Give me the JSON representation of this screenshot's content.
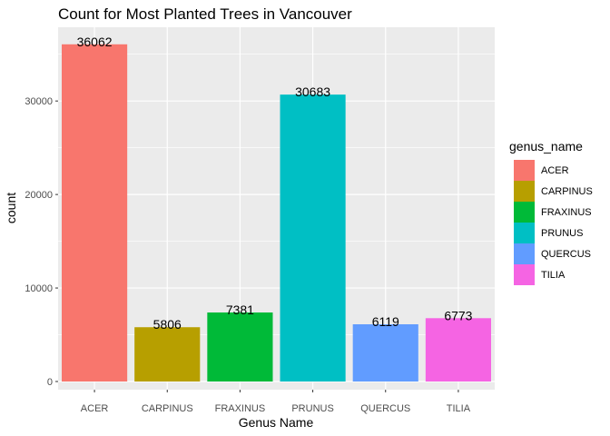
{
  "chart_data": {
    "type": "bar",
    "title": "Count for Most Planted Trees in Vancouver",
    "xlabel": "Genus Name",
    "ylabel": "count",
    "categories": [
      "ACER",
      "CARPINUS",
      "FRAXINUS",
      "PRUNUS",
      "QUERCUS",
      "TILIA"
    ],
    "values": [
      36062,
      5806,
      7381,
      30683,
      6119,
      6773
    ],
    "colors": [
      "#F8766D",
      "#B79F00",
      "#00BA38",
      "#00BFC4",
      "#619CFF",
      "#F564E3"
    ],
    "y_ticks": [
      0,
      10000,
      20000,
      30000
    ],
    "y_tick_labels": [
      "0",
      "10000",
      "20000",
      "30000"
    ],
    "ylim": [
      0,
      37865
    ],
    "grid": true,
    "panel_background": "#EBEBEB",
    "legend": {
      "title": "genus_name",
      "entries": [
        "ACER",
        "CARPINUS",
        "FRAXINUS",
        "PRUNUS",
        "QUERCUS",
        "TILIA"
      ],
      "placement": "right"
    }
  }
}
